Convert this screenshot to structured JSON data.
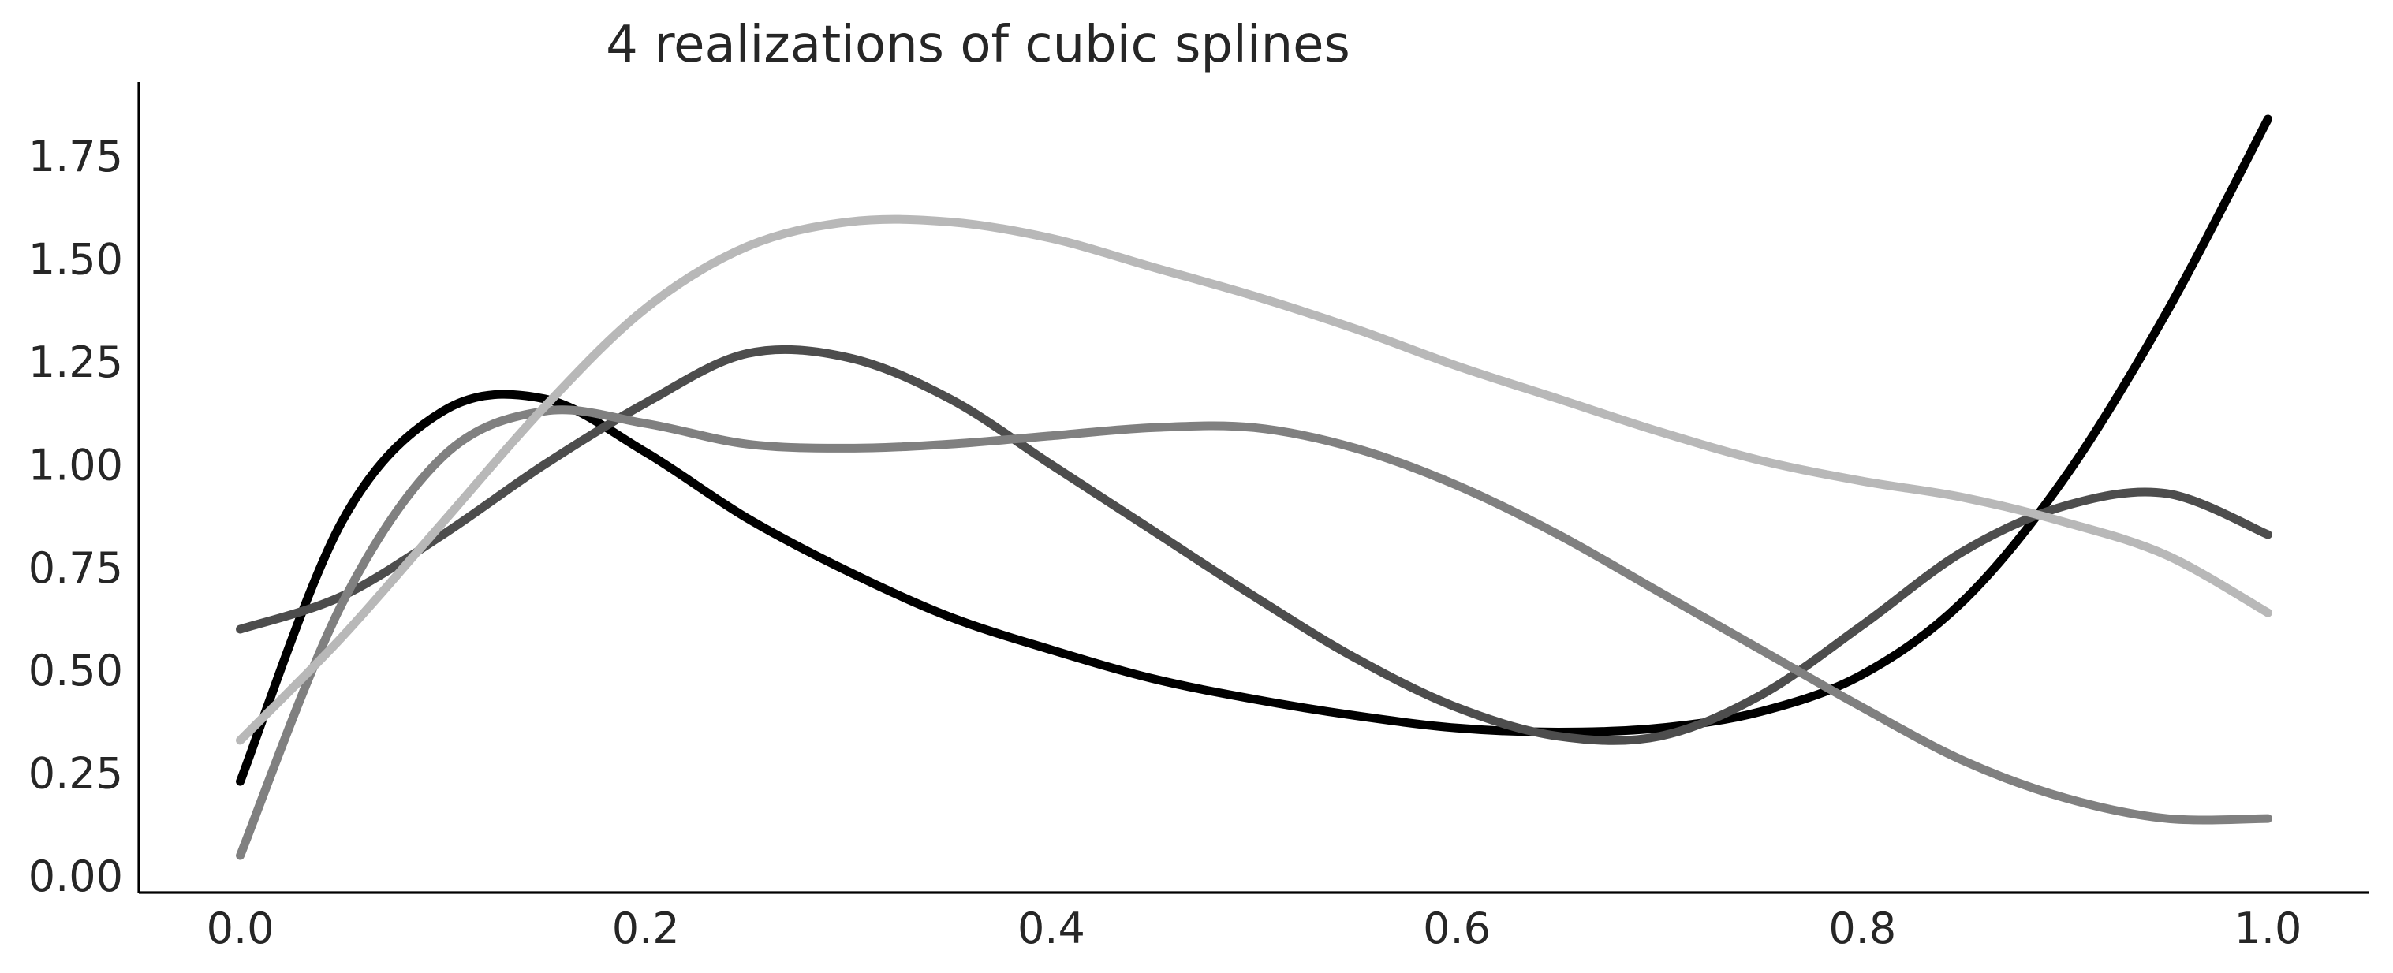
{
  "chart_data": {
    "type": "line",
    "title": "4 realizations of cubic splines",
    "xlabel": "",
    "ylabel": "",
    "xlim": [
      -0.05,
      1.05
    ],
    "ylim": [
      -0.04,
      1.93
    ],
    "grid": false,
    "legend": "none",
    "x_ticks": [
      "0.0",
      "0.2",
      "0.4",
      "0.6",
      "0.8",
      "1.0"
    ],
    "y_ticks": [
      "0.00",
      "0.25",
      "0.50",
      "0.75",
      "1.00",
      "1.25",
      "1.50",
      "1.75"
    ],
    "x_tick_values": [
      0.0,
      0.2,
      0.4,
      0.6,
      0.8,
      1.0
    ],
    "y_tick_values": [
      0.0,
      0.25,
      0.5,
      0.75,
      1.0,
      1.25,
      1.5,
      1.75
    ],
    "x": [
      0.0,
      0.05,
      0.1,
      0.15,
      0.2,
      0.25,
      0.3,
      0.35,
      0.4,
      0.45,
      0.5,
      0.55,
      0.6,
      0.65,
      0.7,
      0.75,
      0.8,
      0.85,
      0.9,
      0.95,
      1.0
    ],
    "series": [
      {
        "color": "#000000",
        "values": [
          0.23,
          0.86,
          1.13,
          1.16,
          1.03,
          0.87,
          0.74,
          0.63,
          0.55,
          0.48,
          0.43,
          0.39,
          0.36,
          0.35,
          0.36,
          0.4,
          0.49,
          0.67,
          0.97,
          1.37,
          1.84
        ]
      },
      {
        "color": "#4d4d4d",
        "values": [
          0.6,
          0.68,
          0.83,
          1.0,
          1.15,
          1.27,
          1.26,
          1.16,
          1.0,
          0.84,
          0.68,
          0.53,
          0.41,
          0.34,
          0.34,
          0.44,
          0.61,
          0.79,
          0.9,
          0.93,
          0.83
        ]
      },
      {
        "color": "#808080",
        "values": [
          0.05,
          0.66,
          1.02,
          1.13,
          1.1,
          1.05,
          1.04,
          1.05,
          1.07,
          1.09,
          1.09,
          1.04,
          0.95,
          0.83,
          0.69,
          0.55,
          0.41,
          0.28,
          0.19,
          0.14,
          0.14
        ]
      },
      {
        "color": "#b8b8b8",
        "values": [
          0.33,
          0.58,
          0.86,
          1.14,
          1.38,
          1.53,
          1.59,
          1.59,
          1.55,
          1.48,
          1.41,
          1.33,
          1.24,
          1.16,
          1.08,
          1.01,
          0.96,
          0.92,
          0.86,
          0.78,
          0.64
        ]
      }
    ]
  }
}
